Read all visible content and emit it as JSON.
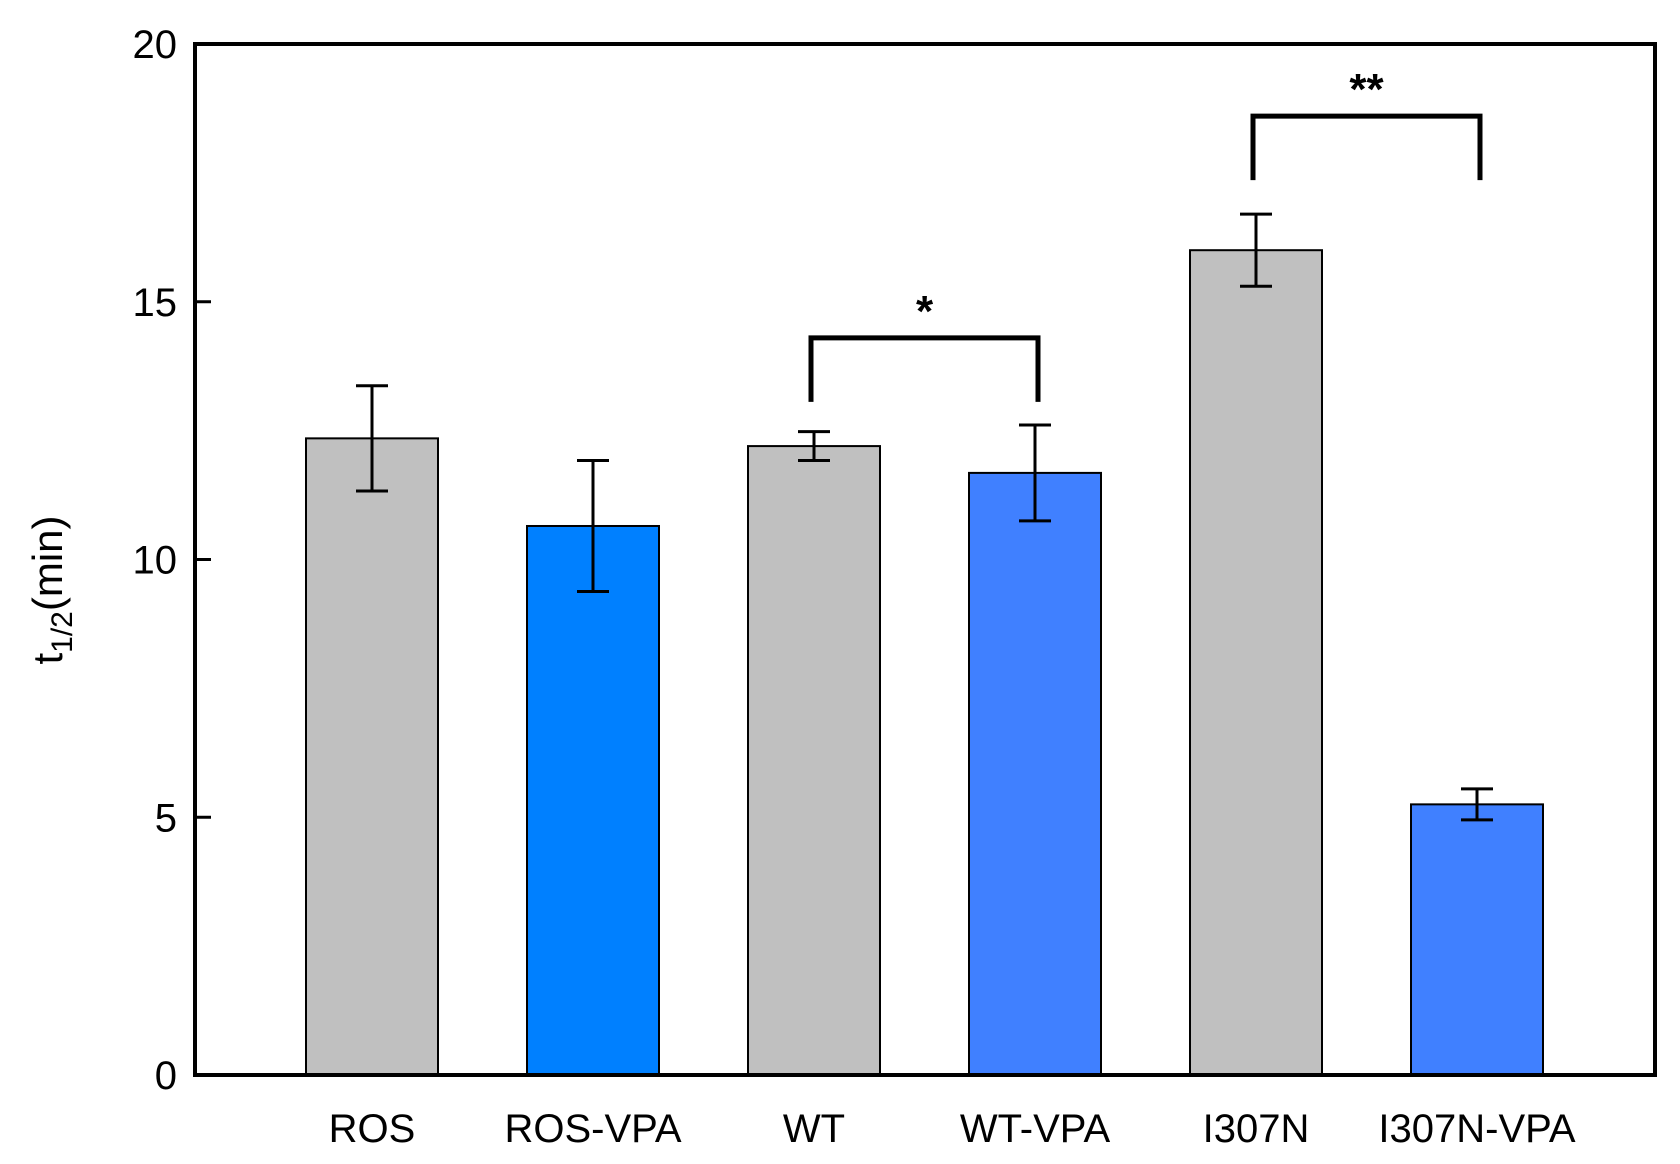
{
  "chart_data": {
    "type": "bar",
    "title": "",
    "xlabel": "",
    "ylabel": {
      "main": "t",
      "subscript": "1/2",
      "suffix": "(min)"
    },
    "ylim": [
      0,
      20
    ],
    "yticks": [
      {
        "value": 0,
        "label": "0"
      },
      {
        "value": 5,
        "label": "5"
      },
      {
        "value": 10,
        "label": "10"
      },
      {
        "value": 15,
        "label": "15"
      },
      {
        "value": 20,
        "label": "20"
      }
    ],
    "categories": [
      "ROS",
      "ROS-VPA",
      "WT",
      "WT-VPA",
      "I307N",
      "I307N-VPA"
    ],
    "values": [
      12.35,
      10.65,
      12.2,
      11.68,
      16.0,
      5.25
    ],
    "errors": [
      1.02,
      1.27,
      0.28,
      0.93,
      0.7,
      0.3
    ],
    "colors": [
      "#c0c0c0",
      "#0080ff",
      "#c0c0c0",
      "#4080ff",
      "#c0c0c0",
      "#4080ff"
    ],
    "grid": false,
    "significance": [
      {
        "from": 2,
        "to": 3,
        "height": 14.3,
        "label": "*"
      },
      {
        "from": 4,
        "to": 5,
        "height": 18.6,
        "label": "**"
      }
    ]
  }
}
